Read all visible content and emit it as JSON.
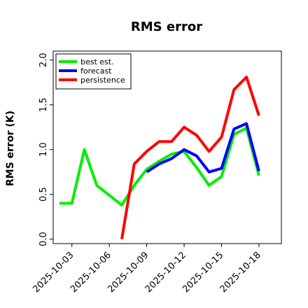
{
  "chart_data": {
    "type": "line",
    "title": "RMS error",
    "xlabel": "",
    "ylabel": "RMS error (K)",
    "ylim": [
      -0.05,
      2.1
    ],
    "yticks": [
      "0.0",
      "0.5",
      "1.0",
      "1.5",
      "2.0"
    ],
    "ytick_values": [
      0.0,
      0.5,
      1.0,
      1.5,
      2.0
    ],
    "xticks": [
      "2025-10-03",
      "2025-10-06",
      "2025-10-09",
      "2025-10-12",
      "2025-10-15",
      "2025-10-18"
    ],
    "xtick_days": [
      3,
      6,
      9,
      12,
      15,
      18
    ],
    "highlight_tick": "2025-10-09",
    "highlight_color": "#228b22",
    "xlim_days": [
      1.5,
      19.8
    ],
    "grid": false,
    "legend_position": "top-left",
    "series": [
      {
        "name": "best est.",
        "color": "#00ee00",
        "x": [
          "2025-10-02",
          "2025-10-03",
          "2025-10-04",
          "2025-10-05",
          "2025-10-07",
          "2025-10-08",
          "2025-10-09",
          "2025-10-10",
          "2025-10-11",
          "2025-10-12",
          "2025-10-13",
          "2025-10-14",
          "2025-10-15",
          "2025-10-16",
          "2025-10-17",
          "2025-10-18"
        ],
        "y": [
          0.4,
          0.4,
          1.0,
          0.6,
          0.38,
          0.6,
          0.78,
          0.87,
          0.95,
          0.98,
          0.8,
          0.6,
          0.7,
          1.17,
          1.24,
          0.71
        ]
      },
      {
        "name": "forecast",
        "color": "#0000ff",
        "x": [
          "2025-10-09",
          "2025-10-10",
          "2025-10-11",
          "2025-10-12",
          "2025-10-13",
          "2025-10-14",
          "2025-10-15",
          "2025-10-16",
          "2025-10-17",
          "2025-10-18"
        ],
        "y": [
          0.75,
          0.84,
          0.9,
          1.0,
          0.93,
          0.75,
          0.79,
          1.23,
          1.29,
          0.76
        ]
      },
      {
        "name": "persistence",
        "color": "#ff0000",
        "x": [
          "2025-10-07",
          "2025-10-08",
          "2025-10-09",
          "2025-10-10",
          "2025-10-11",
          "2025-10-12",
          "2025-10-13",
          "2025-10-14",
          "2025-10-15",
          "2025-10-16",
          "2025-10-17",
          "2025-10-18"
        ],
        "y": [
          0.0,
          0.84,
          0.98,
          1.09,
          1.09,
          1.25,
          1.16,
          0.98,
          1.14,
          1.67,
          1.81,
          1.38
        ]
      }
    ]
  }
}
